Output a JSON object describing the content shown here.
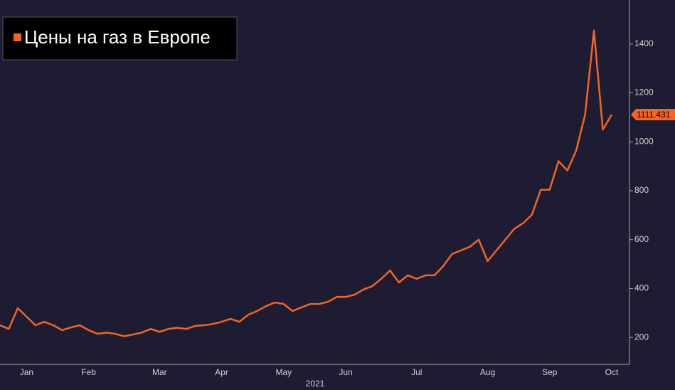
{
  "chart_data": {
    "type": "line",
    "legend_title": "Цены на газ в Европе",
    "x_axis_label": "2021",
    "categories": [
      null,
      null,
      null,
      "Jan",
      null,
      null,
      null,
      null,
      null,
      null,
      "Feb",
      null,
      null,
      null,
      null,
      null,
      null,
      null,
      "Mar",
      null,
      null,
      null,
      null,
      null,
      null,
      "Apr",
      null,
      null,
      null,
      null,
      null,
      null,
      "May",
      null,
      null,
      null,
      null,
      null,
      null,
      "Jun",
      null,
      null,
      null,
      null,
      null,
      null,
      null,
      "Jul",
      null,
      null,
      null,
      null,
      null,
      null,
      null,
      "Aug",
      null,
      null,
      null,
      null,
      null,
      null,
      "Sep",
      null,
      null,
      null,
      null,
      null,
      null,
      "Oct"
    ],
    "series": [
      {
        "name": "Цены на газ в Европе",
        "color": "#f26522",
        "values": [
          250,
          235,
          320,
          285,
          250,
          264,
          250,
          230,
          241,
          250,
          230,
          215,
          220,
          215,
          205,
          212,
          220,
          235,
          223,
          235,
          240,
          235,
          247,
          250,
          255,
          264,
          276,
          264,
          293,
          308,
          328,
          343,
          337,
          308,
          323,
          337,
          337,
          346,
          366,
          366,
          375,
          396,
          410,
          440,
          474,
          425,
          454,
          440,
          454,
          454,
          492,
          542,
          556,
          571,
          600,
          512,
          556,
          600,
          644,
          667,
          702,
          804,
          804,
          921,
          883,
          965,
          1111,
          1455,
          1050,
          1111.431
        ]
      }
    ],
    "ylim": [
      90,
      1580
    ],
    "yticks": [
      200,
      400,
      600,
      800,
      1000,
      1200,
      1400
    ],
    "grid": false
  }
}
